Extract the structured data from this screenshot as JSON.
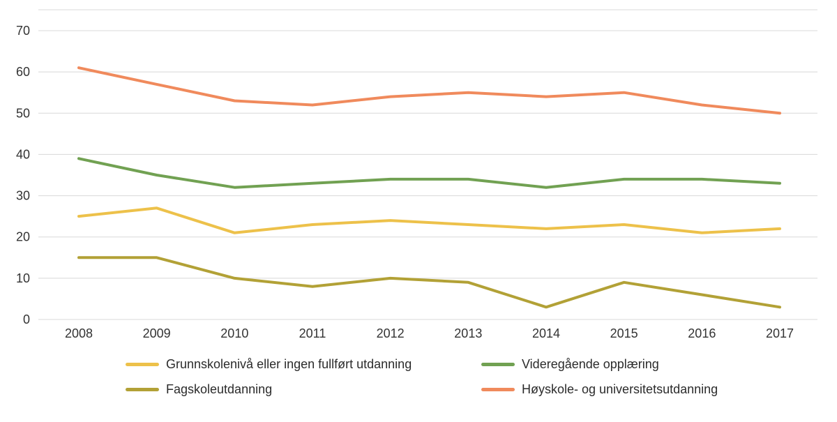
{
  "chart_data": {
    "type": "line",
    "title": "",
    "xlabel": "",
    "ylabel": "",
    "categories": [
      "2008",
      "2009",
      "2010",
      "2011",
      "2012",
      "2013",
      "2014",
      "2015",
      "2016",
      "2017"
    ],
    "series": [
      {
        "name": "Grunnskolenivå eller ingen fullført utdanning",
        "color": "#edc14a",
        "values": [
          25,
          27,
          21,
          23,
          24,
          23,
          22,
          23,
          21,
          22
        ]
      },
      {
        "name": "Videregående opplæring",
        "color": "#71a152",
        "values": [
          39,
          35,
          32,
          33,
          34,
          34,
          32,
          34,
          34,
          33
        ]
      },
      {
        "name": "Fagskoleutdanning",
        "color": "#b2a136",
        "values": [
          15,
          15,
          10,
          8,
          10,
          9,
          3,
          9,
          6,
          3
        ]
      },
      {
        "name": "Høyskole- og universitetsutdanning",
        "color": "#f08a5c",
        "values": [
          61,
          57,
          53,
          52,
          54,
          55,
          54,
          55,
          52,
          50
        ]
      }
    ],
    "ylim": [
      0,
      70
    ],
    "ytick_step": 10,
    "yticks": [
      0,
      10,
      20,
      30,
      40,
      50,
      60,
      70
    ],
    "grid": true,
    "legend_position": "bottom",
    "colors": {
      "grid": "#d8d8d8",
      "tick_text": "#333333",
      "background": "#ffffff"
    }
  }
}
